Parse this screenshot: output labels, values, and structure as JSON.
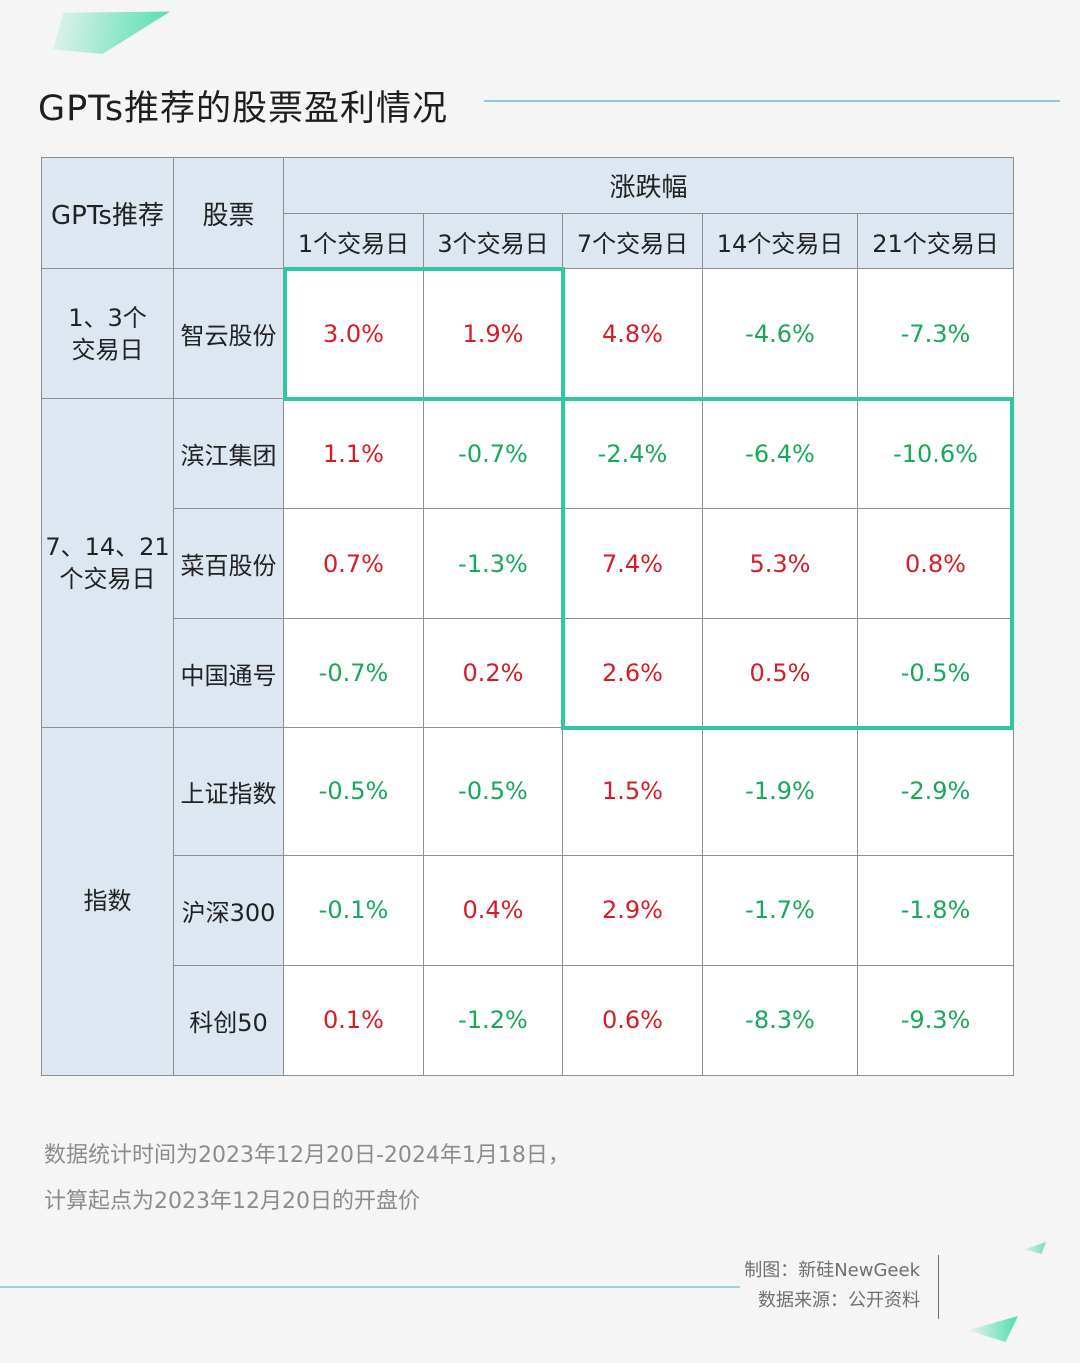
{
  "title": "GPTs推荐的股票盈利情况",
  "table": {
    "header_group": "GPTs推荐",
    "header_stock": "股票",
    "header_change": "涨跌幅",
    "periods": [
      "1个交易日",
      "3个交易日",
      "7个交易日",
      "14个交易日",
      "21个交易日"
    ],
    "groups": [
      {
        "label": "1、3个\n交易日",
        "rows": [
          {
            "name": "智云股份",
            "values": [
              "3.0%",
              "1.9%",
              "4.8%",
              "-4.6%",
              "-7.3%"
            ]
          }
        ]
      },
      {
        "label": "7、14、21\n个交易日",
        "rows": [
          {
            "name": "滨江集团",
            "values": [
              "1.1%",
              "-0.7%",
              "-2.4%",
              "-6.4%",
              "-10.6%"
            ]
          },
          {
            "name": "菜百股份",
            "values": [
              "0.7%",
              "-1.3%",
              "7.4%",
              "5.3%",
              "0.8%"
            ]
          },
          {
            "name": "中国通号",
            "values": [
              "-0.7%",
              "0.2%",
              "2.6%",
              "0.5%",
              "-0.5%"
            ]
          }
        ]
      },
      {
        "label": "指数",
        "rows": [
          {
            "name": "上证指数",
            "values": [
              "-0.5%",
              "-0.5%",
              "1.5%",
              "-1.9%",
              "-2.9%"
            ]
          },
          {
            "name": "沪深300",
            "values": [
              "-0.1%",
              "0.4%",
              "2.9%",
              "-1.7%",
              "-1.8%"
            ]
          },
          {
            "name": "科创50",
            "values": [
              "0.1%",
              "-1.2%",
              "0.6%",
              "-8.3%",
              "-9.3%"
            ]
          }
        ]
      }
    ]
  },
  "colors": {
    "positive": "#d61c26",
    "negative": "#18a85a",
    "highlight": "#2fc8a2",
    "header_bg": "#dce7f2"
  },
  "note": {
    "line1": "数据统计时间为2023年12月20日-2024年1月18日，",
    "line2": "计算起点为2023年12月20日的开盘价"
  },
  "credits": {
    "made_by": "制图：新硅NewGeek",
    "source": "数据来源：公开资料"
  }
}
